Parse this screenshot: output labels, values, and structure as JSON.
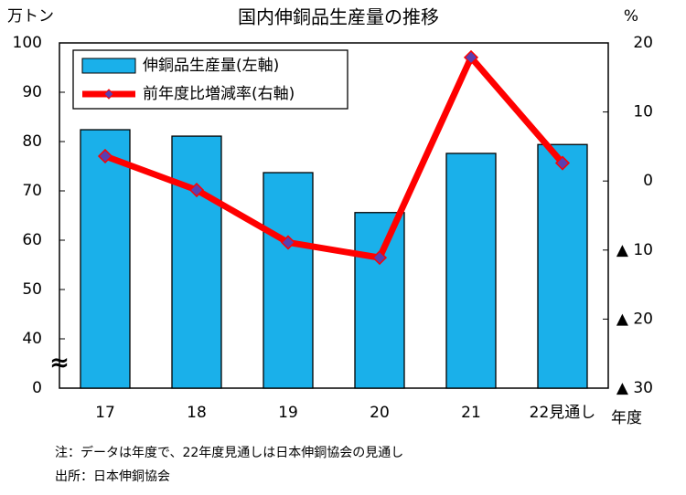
{
  "chart_data": {
    "type": "bar_line",
    "title": "国内伸銅品生産量の推移",
    "y_label": "万トン",
    "y2_label": "%",
    "x_label": "年度",
    "categories": [
      "17",
      "18",
      "19",
      "20",
      "21",
      "22見通し"
    ],
    "series": [
      {
        "name": "伸銅品生産量(左軸)",
        "type": "bar",
        "color": "#1ab0ea",
        "values": [
          82.4,
          81.1,
          73.7,
          65.6,
          77.6,
          79.4
        ]
      },
      {
        "name": "前年度比増減率(右軸)",
        "type": "line",
        "axis": "y2",
        "color": "#ff0000",
        "marker_color": "#5a3fb0",
        "values": [
          3.6,
          -1.3,
          -8.9,
          -11.1,
          17.9,
          2.6
        ]
      }
    ],
    "ylim": [
      0,
      100
    ],
    "yticks": [
      0,
      40,
      50,
      60,
      70,
      80,
      90,
      100
    ],
    "axis_break": true,
    "y2lim": [
      -30,
      20
    ],
    "y2ticks": [
      {
        "value": -30,
        "label": "▲ 30"
      },
      {
        "value": -20,
        "label": "▲ 20"
      },
      {
        "value": -10,
        "label": "▲ 10"
      },
      0,
      10,
      20
    ],
    "legend": "top-left",
    "notes": [
      "注：データは年度で、22年度見通しは日本伸銅協会の見通し",
      "出所：日本伸銅協会"
    ]
  }
}
